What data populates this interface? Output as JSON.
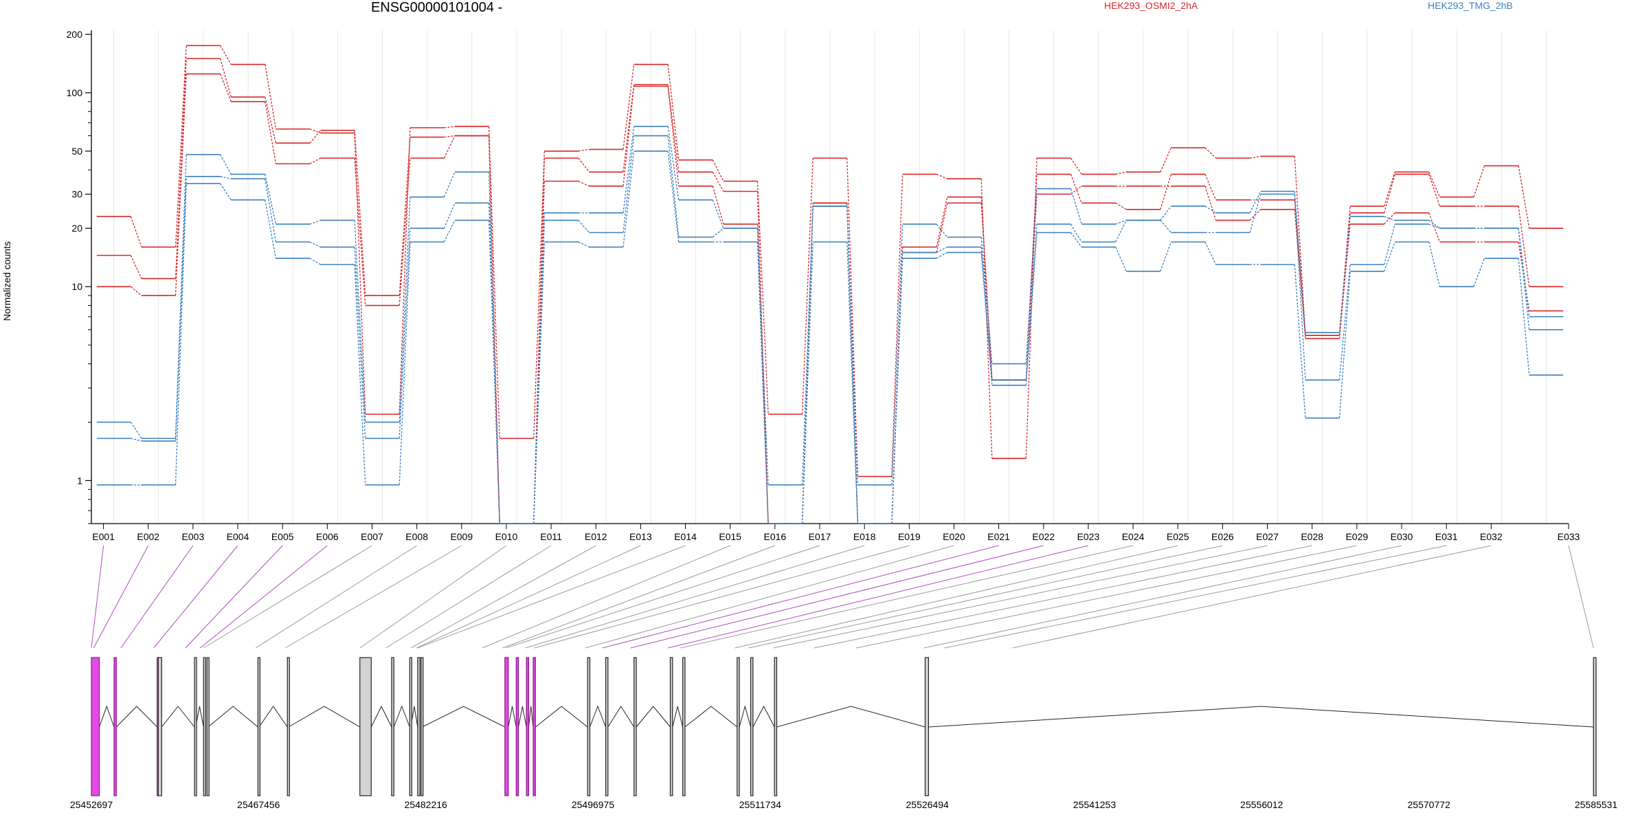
{
  "chart_data": {
    "type": "line",
    "title": "ENSG00000101004 -",
    "ylabel": "Normalized counts",
    "yscale": "log",
    "ylim": [
      0.6,
      210
    ],
    "yticks": [
      1,
      10,
      20,
      30,
      50,
      100,
      200
    ],
    "grid": true,
    "legend_placement": "top",
    "legend": [
      {
        "name": "HEK293_OSMI2_2hA",
        "color": "#d62728"
      },
      {
        "name": "HEK293_TMG_2hB",
        "color": "#3a7fc1"
      }
    ],
    "categories": [
      "E001",
      "E002",
      "E003",
      "E004",
      "E005",
      "E006",
      "E007",
      "E008",
      "E009",
      "E010",
      "E011",
      "E012",
      "E013",
      "E014",
      "E015",
      "E016",
      "E017",
      "E018",
      "E019",
      "E020",
      "E021",
      "E022",
      "E023",
      "E024",
      "E025",
      "E026",
      "E027",
      "E028",
      "E029",
      "E030",
      "E031",
      "E032",
      "E033"
    ],
    "series": [
      {
        "group": "HEK293_OSMI2_2hA",
        "color": "#d62728",
        "values": [
          23,
          16,
          175,
          140,
          65,
          62,
          2.2,
          66,
          67,
          1.65,
          50,
          51,
          140,
          45,
          35,
          2.2,
          46,
          1.05,
          38,
          36,
          1.3,
          46,
          38,
          39,
          52,
          46,
          47,
          5.6,
          26,
          39,
          29,
          42,
          20
        ]
      },
      {
        "group": "HEK293_OSMI2_2hA",
        "color": "#d62728",
        "values": [
          14.5,
          11,
          150,
          95,
          55,
          64,
          9,
          59,
          60,
          0.6,
          46,
          39,
          110,
          39,
          31,
          0.6,
          27,
          0.6,
          16,
          29,
          3.3,
          38,
          27,
          25,
          38,
          28,
          28,
          5.6,
          24,
          38,
          26,
          26,
          10
        ]
      },
      {
        "group": "HEK293_OSMI2_2hA",
        "color": "#d62728",
        "values": [
          10,
          9,
          125,
          90,
          43,
          46,
          8,
          46,
          60,
          0.6,
          35,
          33,
          108,
          33,
          21,
          0.6,
          27,
          0.6,
          15,
          27,
          3.3,
          30,
          33,
          33,
          33,
          22,
          25,
          5.4,
          21,
          24,
          17,
          17,
          7.5
        ]
      },
      {
        "group": "HEK293_TMG_2hB",
        "color": "#3a7fc1",
        "values": [
          2.0,
          1.65,
          48,
          38,
          21,
          22,
          2.0,
          29,
          39,
          0.6,
          24,
          24,
          67,
          28,
          20,
          0.95,
          26,
          0.95,
          21,
          18,
          4.0,
          32,
          21,
          22,
          26,
          24,
          31,
          5.8,
          23,
          22,
          20,
          20,
          7.0
        ]
      },
      {
        "group": "HEK293_TMG_2hB",
        "color": "#3a7fc1",
        "values": [
          1.65,
          1.6,
          37,
          36,
          17,
          16,
          1.65,
          20,
          27,
          0.6,
          22,
          19,
          60,
          18,
          20,
          0.6,
          26,
          0.6,
          15,
          16,
          3.3,
          21,
          17,
          22,
          19,
          19,
          30,
          3.3,
          13,
          21,
          20,
          20,
          6.0
        ]
      },
      {
        "group": "HEK293_TMG_2hB",
        "color": "#3a7fc1",
        "values": [
          0.95,
          0.95,
          34,
          28,
          14,
          13,
          0.95,
          17,
          22,
          0.6,
          17,
          16,
          50,
          17,
          17,
          0.6,
          17,
          0.6,
          14,
          15,
          3.1,
          19,
          16,
          12,
          17,
          13,
          13,
          2.1,
          12,
          17,
          10,
          14,
          3.5
        ]
      }
    ],
    "gene_model": {
      "coordinate_ticks": [
        "25452697",
        "25467456",
        "25482216",
        "25496975",
        "25511734",
        "25526494",
        "25541253",
        "25556012",
        "25570772",
        "25585531"
      ],
      "xrange": [
        25452697,
        25585531
      ],
      "exons": [
        {
          "start": 25452697,
          "end": 25453400,
          "highlight": true
        },
        {
          "start": 25454700,
          "end": 25454900,
          "highlight": true
        },
        {
          "start": 25458600,
          "end": 25458900,
          "highlight": false
        },
        {
          "start": 25458500,
          "end": 25458550,
          "highlight": true
        },
        {
          "start": 25461800,
          "end": 25461900,
          "highlight": false
        },
        {
          "start": 25462600,
          "end": 25462700,
          "highlight": false
        },
        {
          "start": 25462900,
          "end": 25463000,
          "highlight": false
        },
        {
          "start": 25467400,
          "end": 25467500,
          "highlight": false
        },
        {
          "start": 25470000,
          "end": 25470100,
          "highlight": false
        },
        {
          "start": 25476400,
          "end": 25477400,
          "highlight": false
        },
        {
          "start": 25479200,
          "end": 25479400,
          "highlight": false
        },
        {
          "start": 25480800,
          "end": 25480900,
          "highlight": false
        },
        {
          "start": 25481500,
          "end": 25481700,
          "highlight": false
        },
        {
          "start": 25481800,
          "end": 25481900,
          "highlight": false
        },
        {
          "start": 25489200,
          "end": 25489500,
          "highlight": true
        },
        {
          "start": 25490200,
          "end": 25490400,
          "highlight": true
        },
        {
          "start": 25491100,
          "end": 25491300,
          "highlight": true
        },
        {
          "start": 25491700,
          "end": 25491900,
          "highlight": true
        },
        {
          "start": 25496500,
          "end": 25496700,
          "highlight": false
        },
        {
          "start": 25498100,
          "end": 25498300,
          "highlight": false
        },
        {
          "start": 25500600,
          "end": 25500800,
          "highlight": false
        },
        {
          "start": 25503800,
          "end": 25504000,
          "highlight": false
        },
        {
          "start": 25504900,
          "end": 25505100,
          "highlight": false
        },
        {
          "start": 25509700,
          "end": 25509900,
          "highlight": false
        },
        {
          "start": 25510900,
          "end": 25511100,
          "highlight": false
        },
        {
          "start": 25513000,
          "end": 25513200,
          "highlight": false
        },
        {
          "start": 25526300,
          "end": 25526600,
          "highlight": false
        },
        {
          "start": 25585300,
          "end": 25585531,
          "highlight": false
        }
      ],
      "connector_anchors": [
        25452697,
        25452900,
        25455300,
        25458200,
        25461000,
        25462300,
        25462600,
        25467200,
        25469800,
        25476400,
        25478700,
        25480900,
        25481400,
        25481500,
        25487200,
        25489000,
        25489300,
        25491000,
        25491800,
        25496300,
        25497800,
        25500300,
        25503600,
        25504700,
        25509500,
        25510700,
        25512900,
        25516500,
        25520200,
        25526200,
        25528000,
        25534000,
        25585300
      ],
      "connector_highlight": [
        true,
        true,
        true,
        true,
        true,
        true,
        false,
        false,
        false,
        false,
        false,
        false,
        false,
        false,
        false,
        false,
        false,
        false,
        false,
        false,
        true,
        true,
        true,
        false,
        false,
        false,
        false,
        false,
        false,
        false,
        false,
        false,
        false
      ]
    }
  }
}
